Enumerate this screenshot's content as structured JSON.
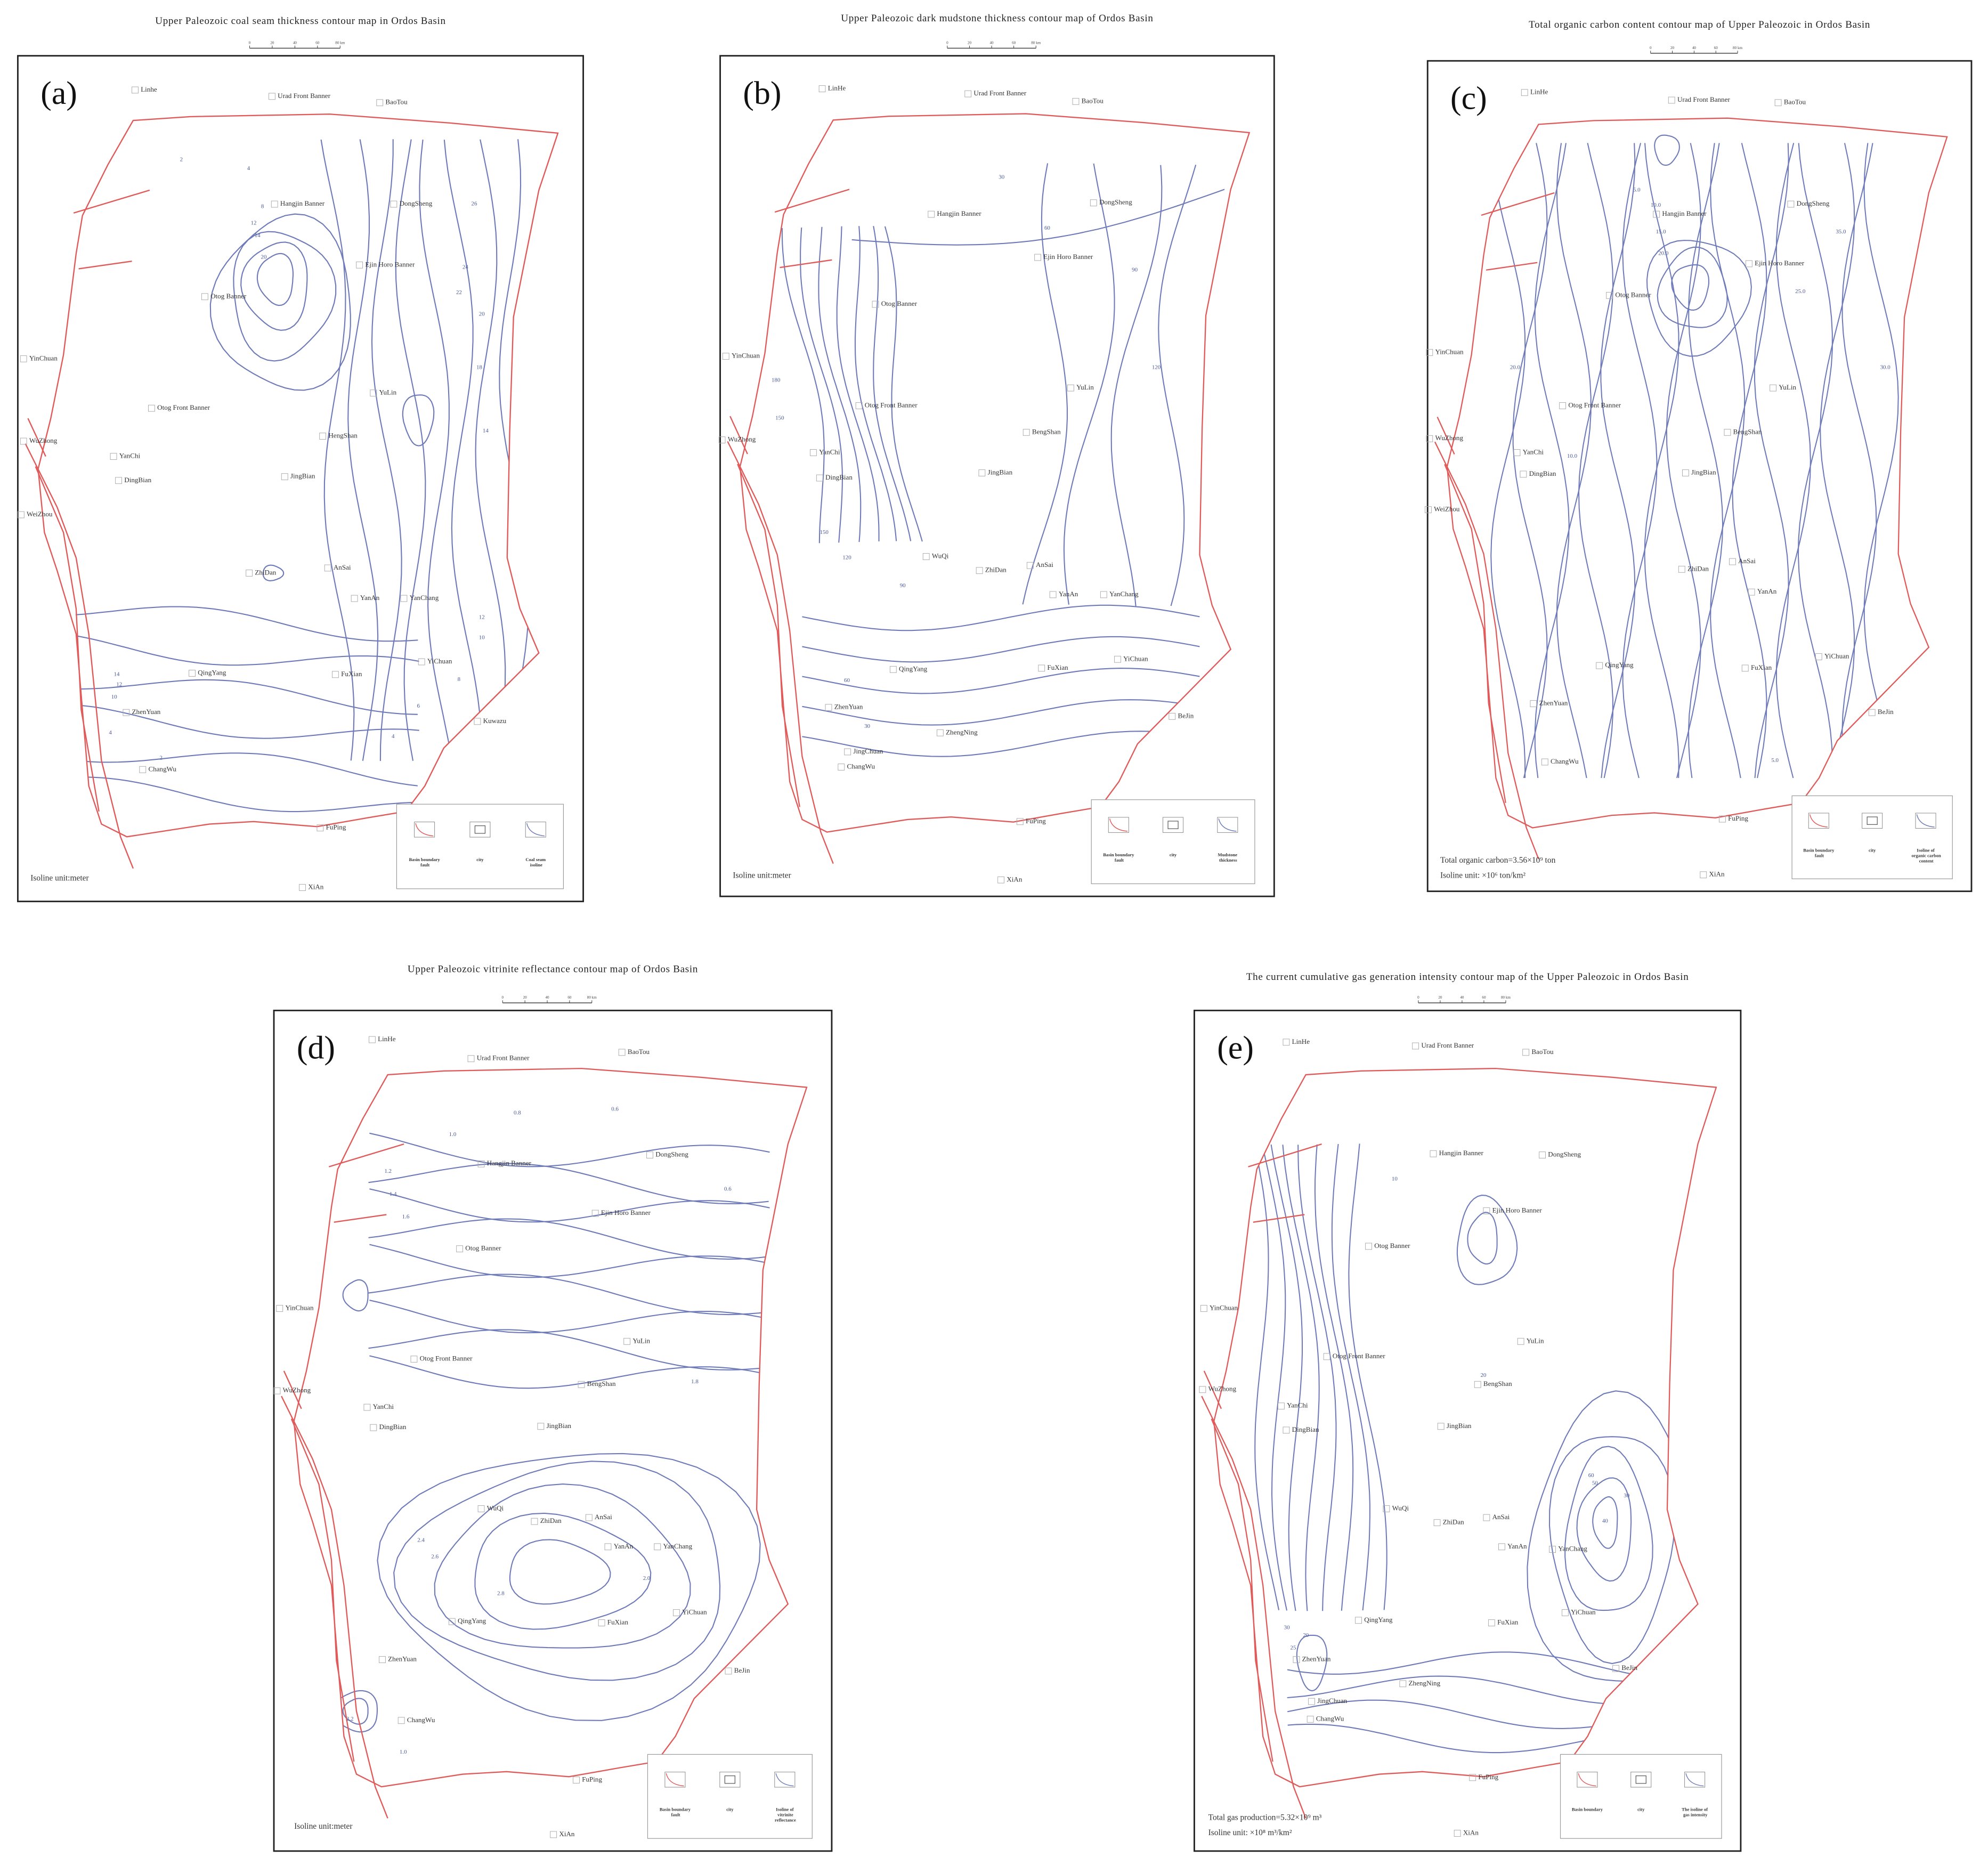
{
  "panels": [
    {
      "label": "(a)",
      "title": "Upper Paleozoic coal seam thickness contour map in Ordos Basin",
      "scale_labels": [
        "0",
        "20",
        "40",
        "60",
        "80 km"
      ],
      "places": [
        "Linhe",
        "Urad Front Banner",
        "BaoTou",
        "Hangjin Banner",
        "DongSheng",
        "Ejin Horo Banner",
        "Otog Banner",
        "YinChuan",
        "Otog Front Banner",
        "YuLin",
        "HengShan",
        "WuZhong",
        "YanChi",
        "DingBian",
        "JingBian",
        "WeiZhou",
        "ZhiDan",
        "AnSai",
        "YanAn",
        "YanChang",
        "YiChuan",
        "FuXian",
        "QingYang",
        "ZhenYuan",
        "Kuwazu",
        "ChangWu",
        "FuPing",
        "XiAn"
      ],
      "contour_labels": [
        "2",
        "4",
        "8",
        "12",
        "14",
        "20",
        "26",
        "24",
        "22",
        "20",
        "18",
        "14",
        "12",
        "10",
        "8",
        "6",
        "4",
        "2",
        "4",
        "14",
        "12",
        "10"
      ],
      "legend": [
        "Basin boundary fault",
        "city",
        "Coal seam isoline"
      ],
      "notes": [
        "Isoline unit:meter"
      ]
    },
    {
      "label": "(b)",
      "title": "Upper Paleozoic dark mudstone thickness contour map of Ordos Basin",
      "scale_labels": [
        "0",
        "20",
        "40",
        "60",
        "80 km"
      ],
      "places": [
        "LinHe",
        "Urad Front Banner",
        "BaoTou",
        "Hangjin Banner",
        "DongSheng",
        "Ejin Horo Banner",
        "Otog Banner",
        "YinChuan",
        "Otog Front Banner",
        "YuLin",
        "BengShan",
        "WuZhong",
        "YanChi",
        "DingBian",
        "JingBian",
        "WuQi",
        "ZhiDan",
        "AnSai",
        "YanAn",
        "YanChang",
        "YiChuan",
        "FuXian",
        "QingYang",
        "ZhenYuan",
        "ZhengNing",
        "JingChuan",
        "ChangWu",
        "BeJin",
        "FuPing",
        "XiAn"
      ],
      "contour_labels": [
        "30",
        "60",
        "90",
        "120",
        "150",
        "180",
        "150",
        "120",
        "90",
        "60",
        "30"
      ],
      "legend": [
        "Basin boundary fault",
        "city",
        "Mudstone thickness"
      ],
      "notes": [
        "Isoline unit:meter"
      ]
    },
    {
      "label": "(c)",
      "title": "Total organic carbon content contour map of Upper Paleozoic in Ordos Basin",
      "scale_labels": [
        "0",
        "20",
        "40",
        "60",
        "80 km"
      ],
      "places": [
        "LinHe",
        "Urad Front Banner",
        "BaoTou",
        "Hangjin Banner",
        "DongSheng",
        "Ejin Horo Banner",
        "Otog Banner",
        "YinChuan",
        "Otog Front Banner",
        "YuLin",
        "BengShan",
        "WuZhong",
        "YanChi",
        "DingBian",
        "JingBian",
        "WeiZhou",
        "ZhiDan",
        "AnSai",
        "YanAn",
        "YiChuan",
        "FuXian",
        "QingYang",
        "ZhenYuan",
        "ChangWu",
        "BeJin",
        "FuPing",
        "XiAn"
      ],
      "contour_labels": [
        "5.0",
        "10.0",
        "15.0",
        "20.0",
        "25.0",
        "30.0",
        "35.0",
        "20.0",
        "10.0",
        "5.0"
      ],
      "legend": [
        "Basin boundary fault",
        "city",
        "Isoline of organic carbon content"
      ],
      "notes": [
        "Total organic carbon=3.56×10⁹ ton",
        "Isoline unit: ×10⁶ ton/km²"
      ]
    },
    {
      "label": "(d)",
      "title": "Upper Paleozoic vitrinite reflectance contour map of Ordos Basin",
      "scale_labels": [
        "0",
        "20",
        "40",
        "60",
        "80 km"
      ],
      "places": [
        "LinHe",
        "Urad Front Banner",
        "BaoTou",
        "Hangjin Banner",
        "DongSheng",
        "Ejin Horo Banner",
        "Otog Banner",
        "YinChuan",
        "Otog Front Banner",
        "YuLin",
        "BengShan",
        "WuZhong",
        "YanChi",
        "DingBian",
        "JingBian",
        "WuQi",
        "ZhiDan",
        "AnSai",
        "YanAn",
        "YanChang",
        "YiChuan",
        "FuXian",
        "QingYang",
        "ZhenYuan",
        "ChangWu",
        "BeJin",
        "FuPing",
        "XiAn"
      ],
      "contour_labels": [
        "1.0",
        "0.8",
        "0.6",
        "0.6",
        "1.2",
        "1.4",
        "1.6",
        "1.8",
        "2.0",
        "2.4",
        "2.6",
        "2.8",
        "2.2",
        "1.0"
      ],
      "legend": [
        "Basin boundary fault",
        "city",
        "Isoline of vitrinite reflectance"
      ],
      "notes": [
        "Isoline unit:meter"
      ]
    },
    {
      "label": "(e)",
      "title": "The current cumulative gas generation intensity contour map of the Upper Paleozoic in Ordos Basin",
      "scale_labels": [
        "0",
        "20",
        "40",
        "60",
        "80 km"
      ],
      "places": [
        "LinHe",
        "Urad Front Banner",
        "BaoTou",
        "Hangjin Banner",
        "DongSheng",
        "Ejin Horo Banner",
        "Otog Banner",
        "YinChuan",
        "Otog Front Banner",
        "YuLin",
        "BengShan",
        "WuZhong",
        "YanChi",
        "DingBian",
        "JingBian",
        "WuQi",
        "ZhiDan",
        "AnSai",
        "YanAn",
        "YanChang",
        "YiChuan",
        "FuXian",
        "QingYang",
        "ZhenYuan",
        "ZhengNing",
        "JingChuan",
        "ChangWu",
        "BeJin",
        "FuPing",
        "XiAn"
      ],
      "contour_labels": [
        "10",
        "20",
        "30",
        "40",
        "50",
        "60",
        "20",
        "30",
        "25"
      ],
      "legend": [
        "Basin boundary",
        "city",
        "The isoline of gas intensity"
      ],
      "notes": [
        "Total gas production=5.32×10⁹ m³",
        "Isoline unit: ×10⁸ m³/km²"
      ]
    }
  ]
}
